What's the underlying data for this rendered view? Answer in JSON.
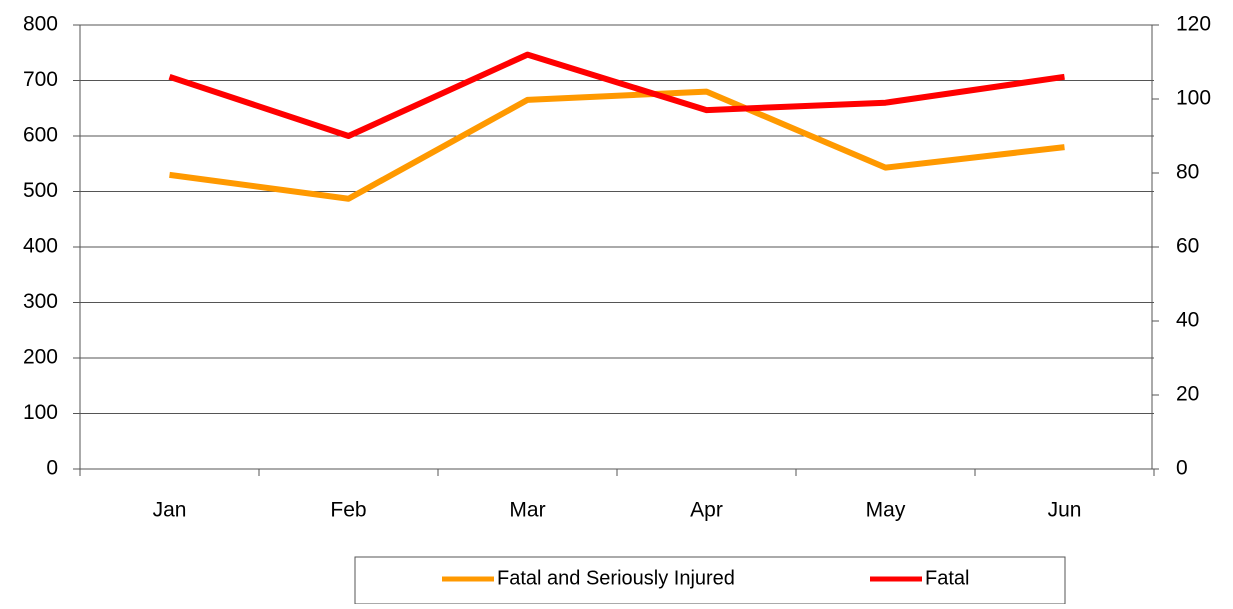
{
  "chart_data": {
    "type": "line",
    "categories": [
      "Jan",
      "Feb",
      "Mar",
      "Apr",
      "May",
      "Jun"
    ],
    "series": [
      {
        "name": "Fatal and Seriously Injured",
        "color": "#ff9900",
        "values": [
          530,
          487,
          665,
          680,
          543,
          580
        ]
      },
      {
        "name": "Fatal",
        "color": "#ff0000",
        "axis": "y2",
        "values": [
          106,
          90,
          112,
          97,
          99,
          106
        ]
      }
    ],
    "ylim": [
      0,
      800
    ],
    "yticks": [
      0,
      100,
      200,
      300,
      400,
      500,
      600,
      700,
      800
    ],
    "y2lim": [
      0,
      120
    ],
    "y2ticks": [
      0,
      20,
      40,
      60,
      80,
      100,
      120
    ],
    "grid": true,
    "legend": "bottom"
  }
}
